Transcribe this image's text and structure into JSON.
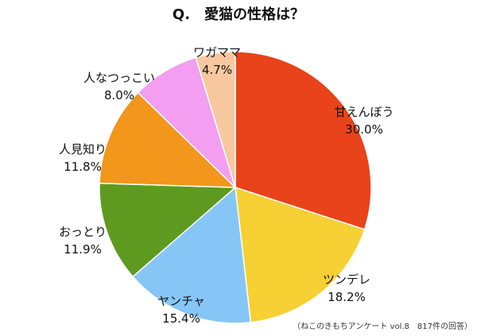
{
  "chart_data": {
    "type": "pie",
    "title": "Q.　愛猫の性格は？",
    "slices": [
      {
        "label": "甘えんぼう",
        "value": 30.0,
        "display": "30.0%",
        "color": "#e8431a"
      },
      {
        "label": "ツンデレ",
        "value": 18.2,
        "display": "18.2%",
        "color": "#f7d033"
      },
      {
        "label": "ヤンチャ",
        "value": 15.4,
        "display": "15.4%",
        "color": "#86c6f7"
      },
      {
        "label": "おっとり",
        "value": 11.9,
        "display": "11.9%",
        "color": "#5e9a20"
      },
      {
        "label": "人見知り",
        "value": 11.8,
        "display": "11.8%",
        "color": "#f2961c"
      },
      {
        "label": "人なつっこい",
        "value": 8.0,
        "display": "8.0%",
        "color": "#f39ef0"
      },
      {
        "label": "ワガママ",
        "value": 4.7,
        "display": "4.7%",
        "color": "#f7c89f"
      }
    ],
    "source": "（ねこのきもちアンケート vol.8　817件の回答）"
  }
}
